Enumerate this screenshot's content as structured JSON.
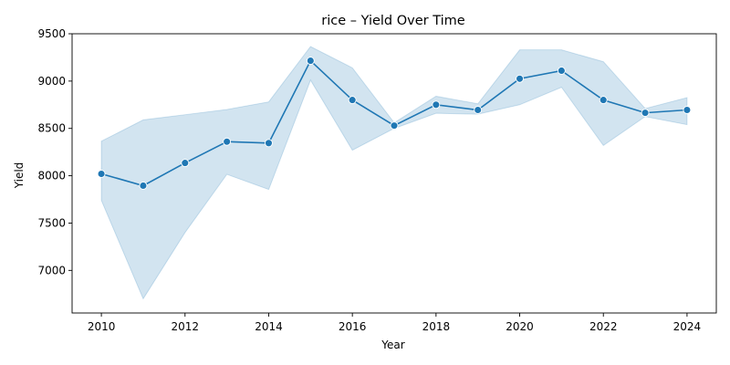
{
  "chart_data": {
    "type": "line",
    "title": "rice – Yield Over Time",
    "xlabel": "Year",
    "ylabel": "Yield",
    "xlim": [
      2009.3,
      2024.7
    ],
    "ylim": [
      6550,
      9500
    ],
    "x_ticks": [
      2010,
      2012,
      2014,
      2016,
      2018,
      2020,
      2022,
      2024
    ],
    "y_ticks": [
      7000,
      7500,
      8000,
      8500,
      9000,
      9500
    ],
    "grid": false,
    "series": [
      {
        "x": [
          2010,
          2011,
          2012,
          2013,
          2014,
          2015,
          2016,
          2017,
          2018,
          2019,
          2020,
          2021,
          2022,
          2023,
          2024
        ],
        "values": [
          8020,
          7895,
          8135,
          8360,
          8345,
          9215,
          8800,
          8530,
          8750,
          8695,
          9025,
          9110,
          8800,
          8665,
          8695
        ],
        "band_upper": [
          8365,
          8590,
          8645,
          8700,
          8780,
          9365,
          9140,
          8560,
          8840,
          8760,
          9330,
          9330,
          9205,
          8710,
          8825
        ],
        "band_lower": [
          7740,
          6700,
          7400,
          8015,
          7855,
          9010,
          8270,
          8500,
          8660,
          8650,
          8750,
          8935,
          8320,
          8625,
          8540
        ],
        "color": "#1f77b4",
        "band_color": "#1f77b4",
        "marker": "circle"
      }
    ]
  }
}
